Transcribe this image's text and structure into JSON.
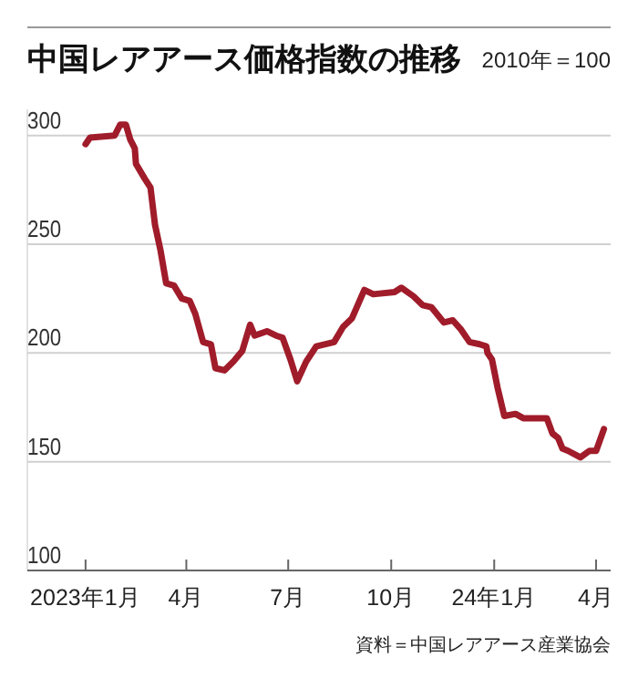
{
  "chart_data": {
    "type": "line",
    "title": "中国レアアース価格指数の推移",
    "subtitle": "2010年＝100",
    "annotations": [
      "資料＝中国レアアース産業協会"
    ],
    "x": [
      "2023-01-01",
      "2023-01-05",
      "2023-01-27",
      "2023-02-01",
      "2023-02-06",
      "2023-02-10",
      "2023-02-14",
      "2023-02-15",
      "2023-02-23",
      "2023-02-28",
      "2023-03-04",
      "2023-03-09",
      "2023-03-14",
      "2023-03-21",
      "2023-03-28",
      "2023-04-04",
      "2023-04-09",
      "2023-04-16",
      "2023-04-23",
      "2023-04-27",
      "2023-05-05",
      "2023-05-13",
      "2023-05-21",
      "2023-05-28",
      "2023-06-01",
      "2023-06-12",
      "2023-06-20",
      "2023-06-26",
      "2023-07-03",
      "2023-07-09",
      "2023-07-17",
      "2023-07-26",
      "2023-08-11",
      "2023-08-19",
      "2023-08-27",
      "2023-09-07",
      "2023-09-15",
      "2023-10-04",
      "2023-10-10",
      "2023-10-21",
      "2023-10-29",
      "2023-11-06",
      "2023-11-17",
      "2023-11-25",
      "2023-12-02",
      "2023-12-10",
      "2023-12-19",
      "2023-12-25",
      "2023-12-26",
      "2023-12-30",
      "2024-01-04",
      "2024-01-10",
      "2024-01-20",
      "2024-01-27",
      "2024-02-17",
      "2024-02-22",
      "2024-02-27",
      "2024-03-02",
      "2024-03-07",
      "2024-03-18",
      "2024-03-26",
      "2024-04-01",
      "2024-04-08"
    ],
    "series": [
      {
        "color": "#a01c2a",
        "values": [
          296,
          299,
          300,
          305,
          305,
          298,
          294,
          287,
          280,
          276,
          259,
          247,
          232,
          231,
          225,
          224,
          218,
          205,
          204,
          193,
          192,
          196,
          201,
          213,
          208,
          210,
          208,
          207,
          197,
          187,
          196,
          203,
          205,
          212,
          216,
          229,
          227,
          228,
          230,
          226,
          222,
          221,
          214,
          215,
          211,
          205,
          204,
          203,
          200,
          197,
          184,
          171,
          172,
          170,
          170,
          163,
          161,
          156,
          155,
          152,
          155,
          155,
          165
        ]
      }
    ],
    "xlim": [
      "2022-11-10",
      "2024-04-14"
    ],
    "xticks": [
      {
        "value": "2023-01-01",
        "label": "2023年1月"
      },
      {
        "value": "2023-04-01",
        "label": "4月"
      },
      {
        "value": "2023-07-01",
        "label": "7月"
      },
      {
        "value": "2023-10-01",
        "label": "10月"
      },
      {
        "value": "2024-01-01",
        "label": "24年1月"
      },
      {
        "value": "2024-04-01",
        "label": "4月"
      }
    ],
    "ylim": [
      100,
      312
    ],
    "yticks": [
      100,
      150,
      200,
      250,
      300
    ],
    "grid": "y",
    "marker": "none",
    "line_style": "solid"
  }
}
